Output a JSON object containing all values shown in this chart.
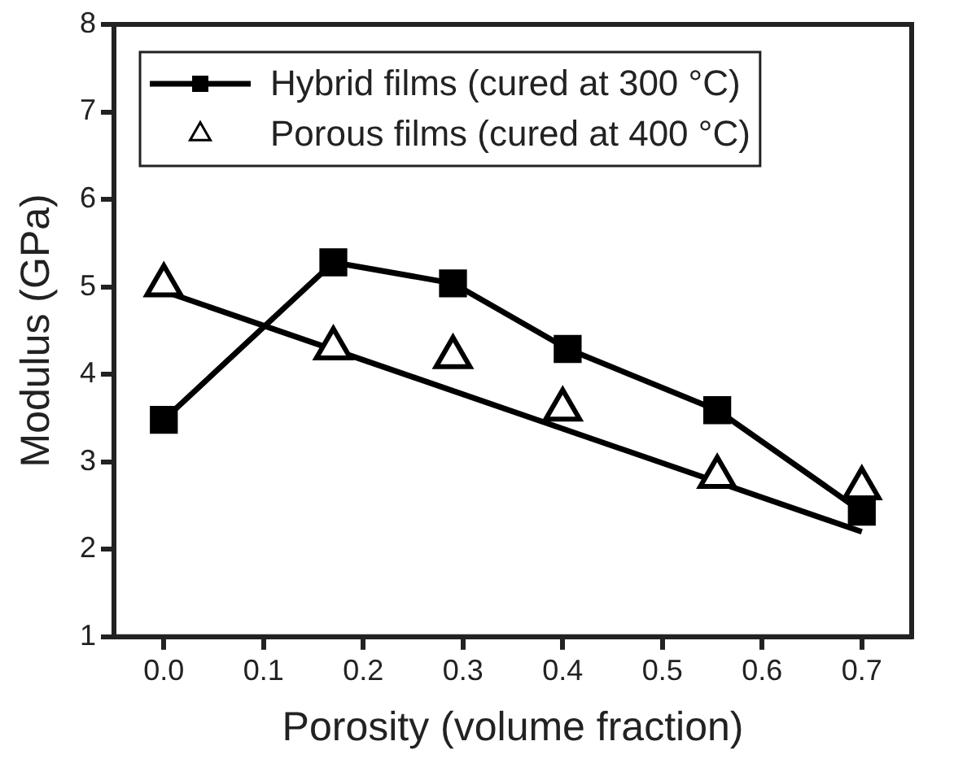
{
  "chart_data": {
    "type": "line",
    "xlabel": "Porosity (volume fraction)",
    "ylabel": "Modulus (GPa)",
    "xlim": [
      -0.05,
      0.75
    ],
    "xticks": [
      {
        "value": 0,
        "label": "0.0"
      },
      0.1,
      0.2,
      0.3,
      0.4,
      0.5,
      0.6,
      0.7
    ],
    "ylim": [
      1,
      8
    ],
    "yticks": [
      1,
      2,
      3,
      4,
      5,
      6,
      7,
      8
    ],
    "grid": false,
    "legend": "top left",
    "series": [
      {
        "name": "Hybrid films (cured at 300 °C)",
        "type": "line",
        "marker": "square",
        "color": "#000000",
        "x": [
          0,
          0.17,
          0.29,
          0.405,
          0.555,
          0.7
        ],
        "values": [
          3.48,
          5.28,
          5.04,
          4.29,
          3.59,
          2.43
        ]
      },
      {
        "name": "Porous films (cured at 400 °C)",
        "type": "scatter",
        "marker": "triangle",
        "color": "#000000",
        "x": [
          0,
          0.17,
          0.29,
          0.4,
          0.555,
          0.7
        ],
        "values": [
          5.02,
          4.3,
          4.2,
          3.6,
          2.83,
          2.7
        ]
      },
      {
        "type": "line",
        "marker": "none",
        "color": "#000000",
        "x": [
          0,
          0.7
        ],
        "values": [
          4.95,
          2.2
        ]
      }
    ]
  }
}
